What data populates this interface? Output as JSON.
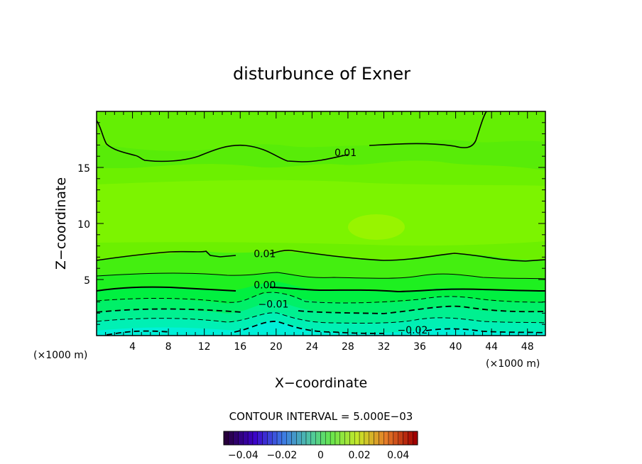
{
  "chart_data": {
    "type": "contour",
    "title": "disturbunce of Exner",
    "xlabel": "X−coordinate",
    "ylabel": "Z−coordinate",
    "x_unit": "(×1000 m)",
    "y_unit": "(×1000 m)",
    "xlim": [
      0,
      50
    ],
    "ylim": [
      0,
      20
    ],
    "x_ticks": [
      "4",
      "8",
      "12",
      "16",
      "20",
      "24",
      "28",
      "32",
      "36",
      "40",
      "44",
      "48"
    ],
    "y_ticks": [
      "5",
      "10",
      "15"
    ],
    "contour_interval_text": "CONTOUR INTERVAL = 5.000E−03",
    "contour_interval": 0.005,
    "contour_labels": [
      {
        "text": "0.01",
        "x": 26.5,
        "y": 16.0
      },
      {
        "text": "0.01",
        "x": 17.5,
        "y": 7.0
      },
      {
        "text": "0.00",
        "x": 17.5,
        "y": 4.2
      },
      {
        "text": "−0.01",
        "x": 18.0,
        "y": 2.5
      },
      {
        "text": "−0.02",
        "x": 33.5,
        "y": 0.2
      }
    ],
    "colorbar": {
      "range": [
        -0.05,
        0.05
      ],
      "tick_labels": [
        "−0.04",
        "−0.02",
        "0",
        "0.02",
        "0.04"
      ],
      "tick_values": [
        -0.04,
        -0.02,
        0,
        0.02,
        0.04
      ]
    },
    "fill_colors": [
      "#00e5e5",
      "#00f0c8",
      "#00ff8c",
      "#00ff40",
      "#28ff00",
      "#5aff00",
      "#80ff20",
      "#a0ff00"
    ]
  }
}
